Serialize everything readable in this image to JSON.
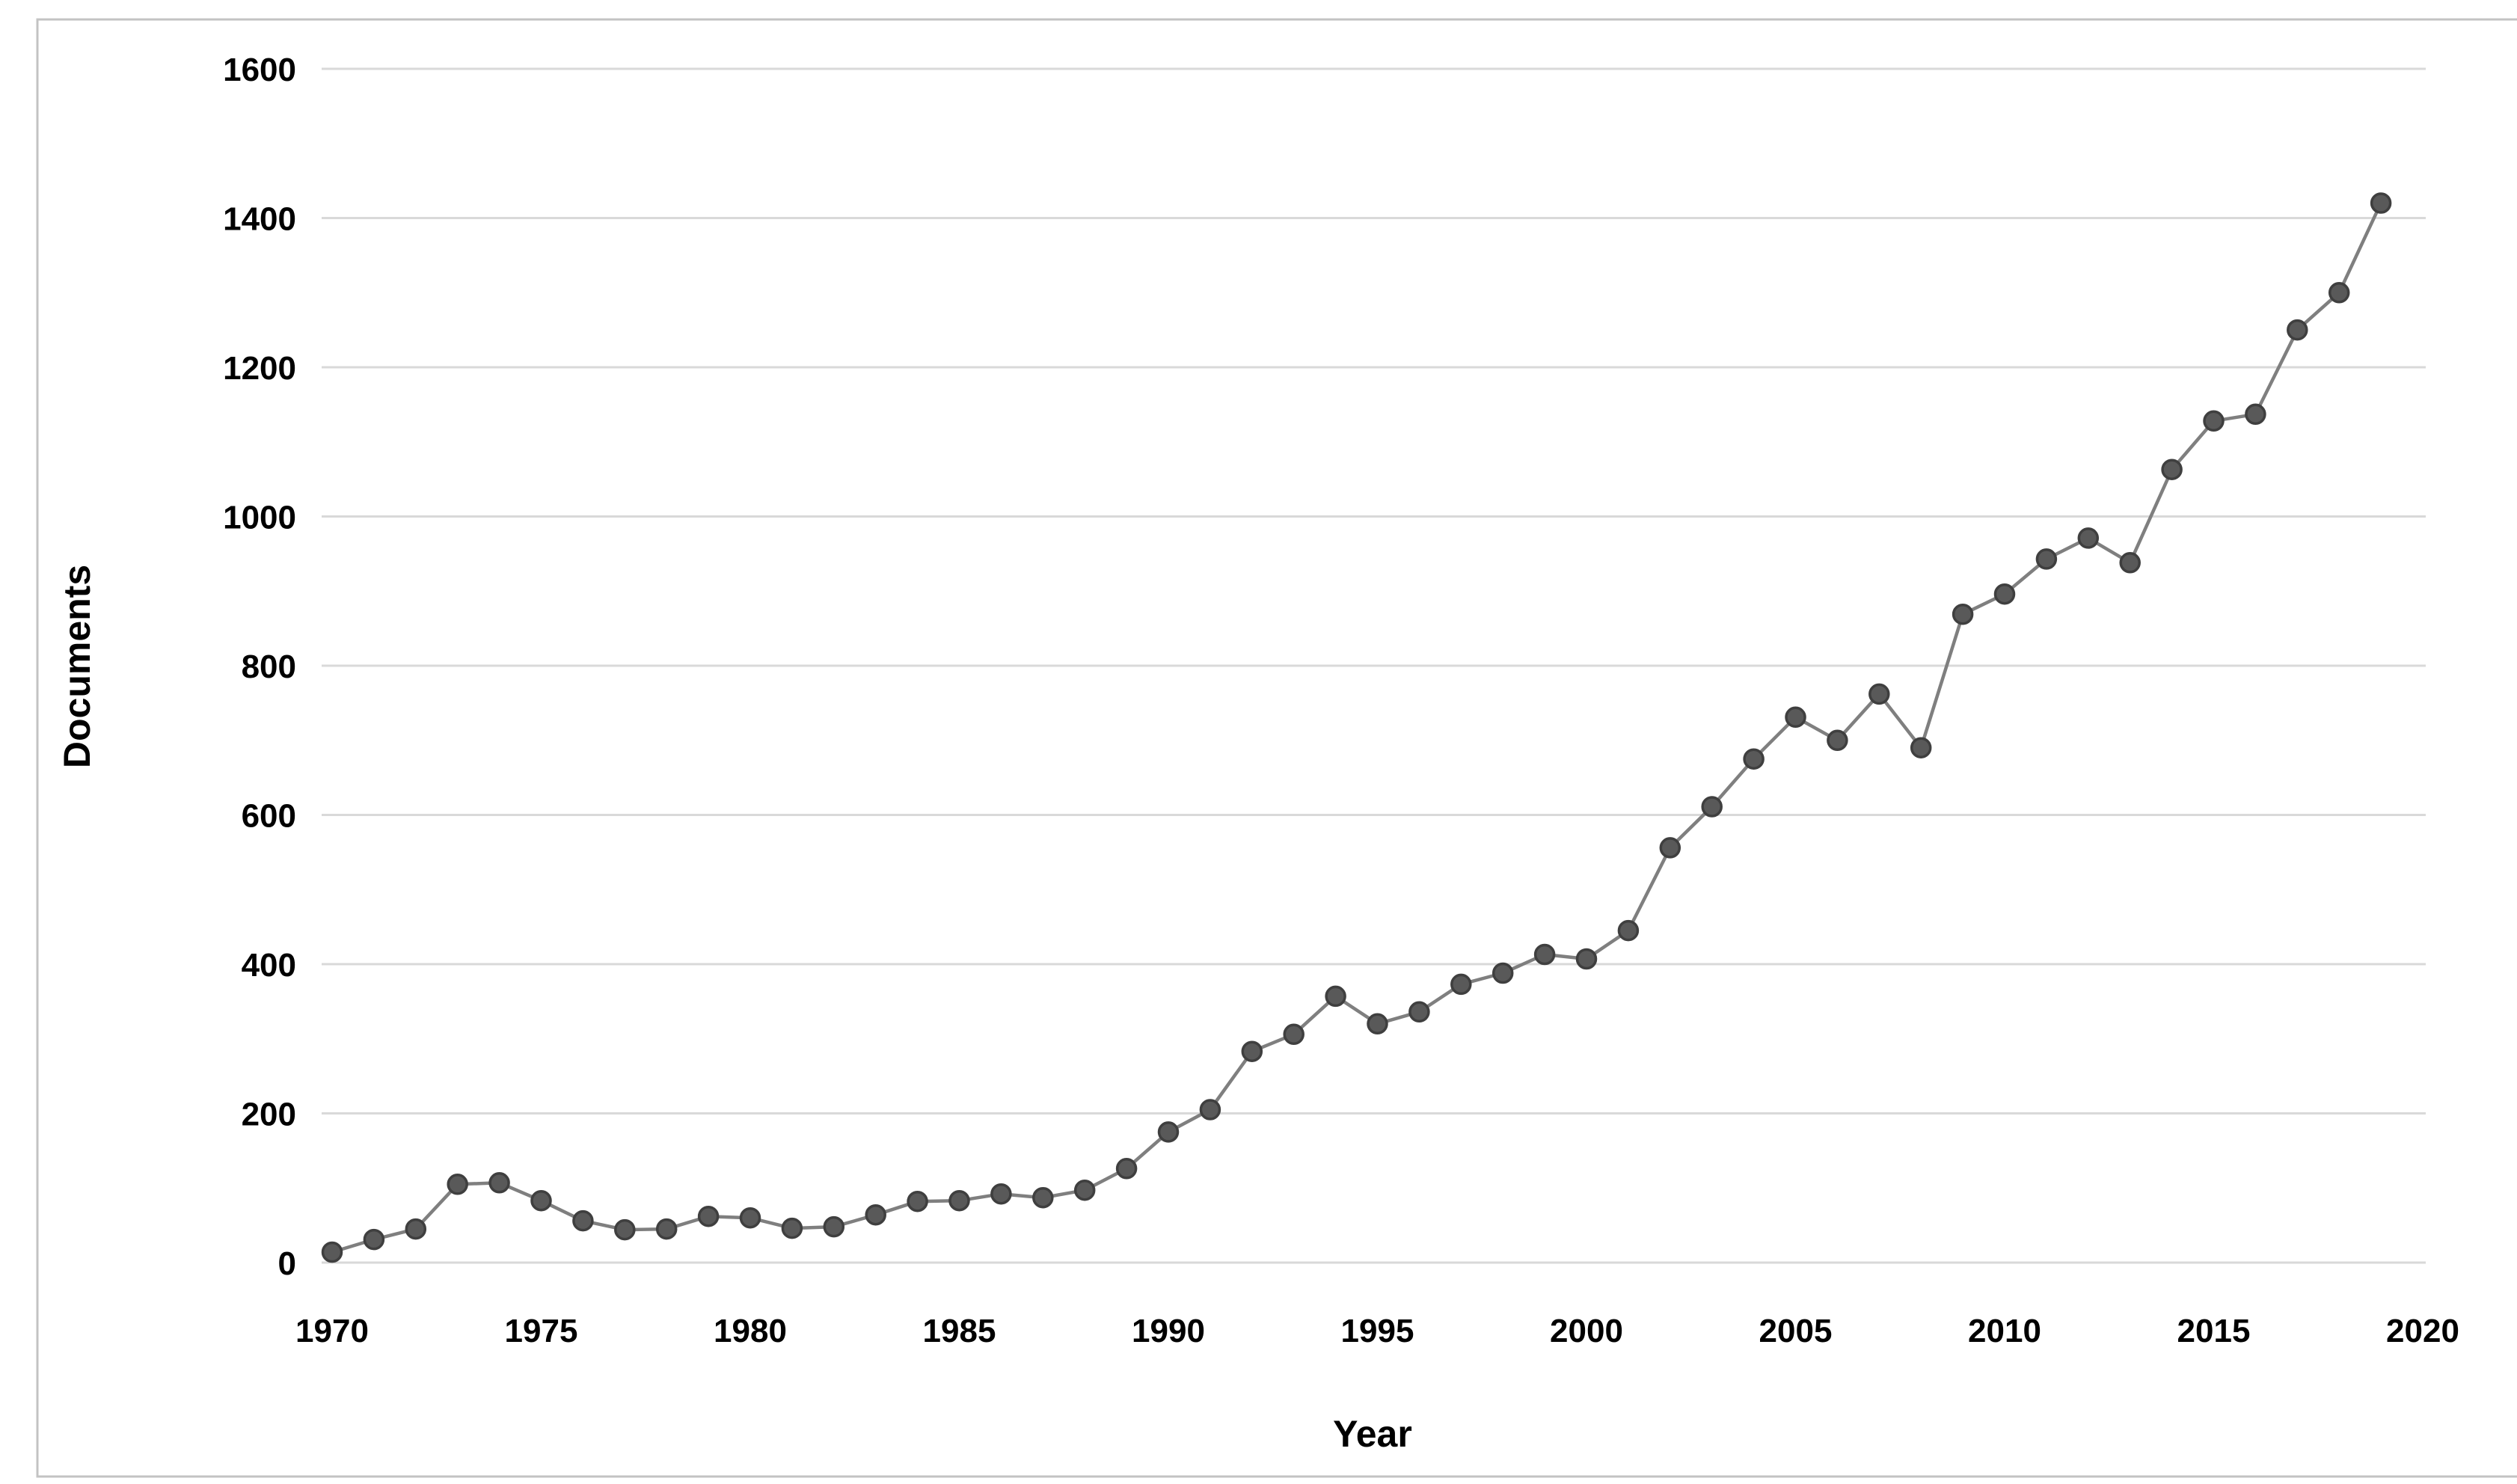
{
  "chart_data": {
    "type": "line",
    "title": "",
    "xlabel": "Year",
    "ylabel": "Documents",
    "series": [
      {
        "name": "Documents",
        "x": [
          1970,
          1971,
          1972,
          1973,
          1974,
          1975,
          1976,
          1977,
          1978,
          1979,
          1980,
          1981,
          1982,
          1983,
          1984,
          1985,
          1986,
          1987,
          1988,
          1989,
          1990,
          1991,
          1992,
          1993,
          1994,
          1995,
          1996,
          1997,
          1998,
          1999,
          2000,
          2001,
          2002,
          2003,
          2004,
          2005,
          2006,
          2007,
          2008,
          2009,
          2010,
          2011,
          2012,
          2013,
          2014,
          2015,
          2016,
          2017,
          2018,
          2019
        ],
        "values": [
          14,
          31,
          45,
          105,
          107,
          83,
          56,
          44,
          45,
          62,
          60,
          46,
          48,
          64,
          82,
          83,
          92,
          87,
          97,
          126,
          175,
          205,
          283,
          306,
          357,
          320,
          336,
          373,
          388,
          413,
          407,
          445,
          556,
          611,
          675,
          731,
          700,
          762,
          690,
          869,
          896,
          943,
          971,
          938,
          1063,
          1128,
          1137,
          1250,
          1300,
          1420
        ]
      }
    ],
    "xlim": [
      1969.75,
      2020.25
    ],
    "ylim": [
      0,
      1600
    ],
    "yticks": [
      0,
      200,
      400,
      600,
      800,
      1000,
      1200,
      1400,
      1600
    ],
    "xticks": [
      1970,
      1975,
      1980,
      1985,
      1990,
      1995,
      2000,
      2005,
      2010,
      2015,
      2020
    ],
    "grid": true,
    "gridline_orientation": "horizontal",
    "legend": "none",
    "marker": "circle",
    "colors": {
      "line": "#7f7f7f",
      "marker_fill": "#595959",
      "marker_stroke": "#3f3f3f",
      "gridline": "#d9d9d9",
      "text": "#000000",
      "frame_border": "#c3c3c3",
      "background": "#ffffff"
    }
  }
}
